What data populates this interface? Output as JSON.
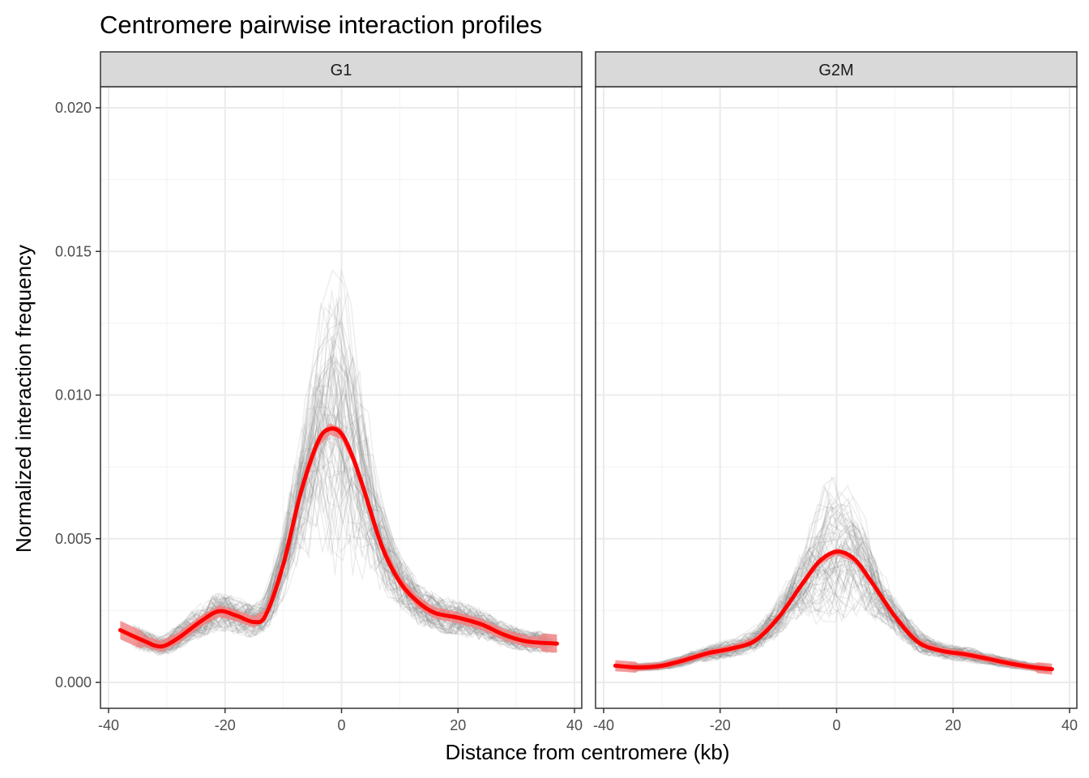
{
  "chart_data": {
    "type": "line",
    "title": "Centromere pairwise interaction profiles",
    "xlabel": "Distance from centromere (kb)",
    "ylabel": "Normalized interaction frequency",
    "xlim": [
      -40,
      40
    ],
    "ylim": [
      0,
      0.02
    ],
    "x_ticks": [
      -40,
      -20,
      0,
      20,
      40
    ],
    "x_tick_labels": [
      "-40",
      "-20",
      "0",
      "20",
      "40"
    ],
    "y_ticks": [
      0.0,
      0.005,
      0.01,
      0.015,
      0.02
    ],
    "y_tick_labels": [
      "0.000",
      "0.005",
      "0.010",
      "0.015",
      "0.020"
    ],
    "grid": true,
    "colors": {
      "smooth": "#ff0000",
      "ribbon": "#f08080",
      "traces": "#7f7f7f",
      "strip": "#d9d9d9"
    },
    "panels": [
      {
        "name": "G1",
        "x": [
          -38,
          -34,
          -31,
          -28,
          -24,
          -21,
          -18,
          -15,
          -13,
          -10,
          -7,
          -4,
          -2,
          0,
          2,
          4,
          7,
          10,
          13,
          16,
          20,
          24,
          28,
          32,
          37
        ],
        "smooth": [
          0.00182,
          0.00145,
          0.00125,
          0.00155,
          0.00215,
          0.00248,
          0.00232,
          0.0021,
          0.00235,
          0.0041,
          0.0066,
          0.0084,
          0.00882,
          0.00865,
          0.0078,
          0.0066,
          0.0047,
          0.0035,
          0.00282,
          0.00242,
          0.00225,
          0.00202,
          0.00165,
          0.00142,
          0.00135
        ],
        "ribbon_halfwidth": 0.0002
      },
      {
        "name": "G2M",
        "x": [
          -38,
          -34,
          -30,
          -26,
          -22,
          -18,
          -14,
          -10,
          -6,
          -3,
          0,
          3,
          6,
          10,
          14,
          18,
          22,
          26,
          30,
          34,
          37
        ],
        "smooth": [
          0.00058,
          0.00052,
          0.00058,
          0.00078,
          0.00102,
          0.00118,
          0.00145,
          0.00225,
          0.0034,
          0.0042,
          0.00455,
          0.0043,
          0.0035,
          0.0023,
          0.0014,
          0.0011,
          0.00098,
          0.00082,
          0.00065,
          0.00052,
          0.00046
        ],
        "ribbon_halfwidth": 0.00012
      }
    ]
  }
}
